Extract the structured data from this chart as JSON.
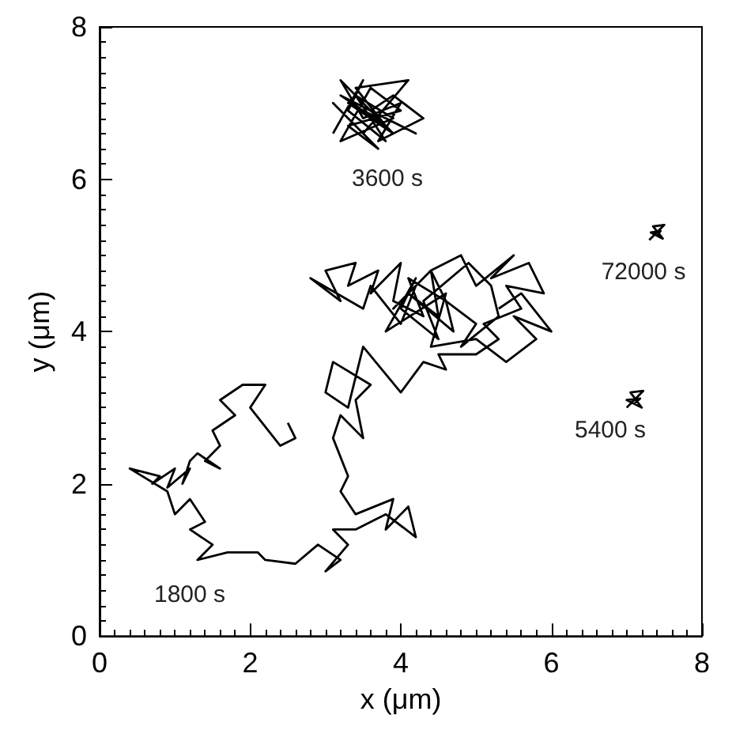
{
  "chart_data": {
    "type": "line",
    "xlabel": "x (μm)",
    "ylabel": "y (μm)",
    "xlim": [
      0,
      8
    ],
    "ylim": [
      0,
      8
    ],
    "xticks": [
      0,
      2,
      4,
      6,
      8
    ],
    "yticks": [
      0,
      2,
      4,
      6,
      8
    ],
    "grid": false,
    "marker": "none",
    "line_style": "solid",
    "series": [
      {
        "color": "#000000",
        "x": [
          2.5,
          2.6,
          2.4,
          2.0,
          2.2,
          1.9,
          1.6,
          1.8,
          1.5,
          1.6,
          1.4,
          1.6,
          1.3,
          1.2,
          1.1,
          1.2,
          0.9,
          1.0,
          0.7,
          0.8,
          0.4,
          0.9,
          1.0,
          1.2,
          1.4,
          1.2,
          1.5,
          1.3,
          1.7,
          2.1,
          2.2,
          2.6,
          2.9,
          3.2,
          3.0,
          3.3,
          3.1,
          3.4,
          3.8,
          4.2,
          4.1,
          3.8,
          3.9,
          3.4,
          3.2,
          3.3,
          3.1,
          3.2,
          3.5,
          3.4,
          3.6,
          3.1,
          3.0,
          3.3,
          3.5,
          4.0,
          4.3,
          4.6,
          4.5,
          5.0,
          5.3,
          5.1,
          5.6,
          5.4,
          5.9,
          5.7,
          5.2,
          5.5,
          5.0,
          4.8,
          4.4,
          4.6,
          4.1,
          4.3,
          3.9,
          4.0,
          3.6,
          3.7,
          3.3,
          3.4,
          3.0,
          3.2,
          2.8,
          3.5,
          3.6,
          4.0,
          4.2,
          3.9,
          4.4,
          4.5,
          4.1,
          4.7,
          4.6,
          5.0,
          4.8,
          5.3,
          5.2,
          4.9,
          4.3,
          4.5,
          4.0,
          4.2,
          3.8,
          4.6,
          4.4,
          5.0,
          5.4,
          5.8,
          5.5,
          6.0,
          5.6,
          5.3
        ],
        "values": [
          2.8,
          2.6,
          2.5,
          3.0,
          3.3,
          3.3,
          3.1,
          2.9,
          2.7,
          2.5,
          2.3,
          2.2,
          2.4,
          2.3,
          2.0,
          2.2,
          1.95,
          2.2,
          2.0,
          2.1,
          2.2,
          1.9,
          1.6,
          1.8,
          1.5,
          1.4,
          1.2,
          1.0,
          1.1,
          1.1,
          1.0,
          0.95,
          1.2,
          1.0,
          0.85,
          1.2,
          1.4,
          1.4,
          1.6,
          1.3,
          1.7,
          1.4,
          1.8,
          1.6,
          1.9,
          2.1,
          2.6,
          2.9,
          2.6,
          3.1,
          3.3,
          3.6,
          3.2,
          3.0,
          3.8,
          3.2,
          3.6,
          3.5,
          3.7,
          3.7,
          3.9,
          4.1,
          4.3,
          4.6,
          4.5,
          4.9,
          4.7,
          5.0,
          4.6,
          5.0,
          4.8,
          4.4,
          4.7,
          4.2,
          4.4,
          4.9,
          4.5,
          4.8,
          4.6,
          4.9,
          4.8,
          4.4,
          4.7,
          4.3,
          4.6,
          4.1,
          4.6,
          4.3,
          4.8,
          4.2,
          4.5,
          4.0,
          4.4,
          4.1,
          3.8,
          4.2,
          4.6,
          4.9,
          4.4,
          3.9,
          4.3,
          4.7,
          4.0,
          4.5,
          3.8,
          3.9,
          3.6,
          3.9,
          4.2,
          4.0,
          4.5,
          4.3
        ]
      },
      {
        "color": "#000000",
        "x": [
          3.1,
          3.5,
          3.3,
          3.8,
          3.4,
          3.9,
          3.2,
          3.6,
          4.0,
          3.3,
          3.7,
          3.1,
          3.5,
          4.1,
          3.4,
          3.8,
          3.2,
          4.2,
          3.6,
          3.9,
          4.3,
          3.7,
          4.0,
          3.5,
          3.2,
          3.9,
          3.3,
          3.7
        ],
        "values": [
          6.6,
          7.3,
          6.9,
          6.5,
          7.1,
          6.8,
          6.5,
          7.2,
          6.9,
          6.7,
          6.4,
          7.0,
          6.6,
          7.3,
          7.2,
          6.7,
          7.1,
          6.6,
          6.9,
          7.1,
          6.8,
          6.5,
          7.0,
          6.8,
          7.3,
          6.6,
          7.0,
          6.8
        ]
      },
      {
        "color": "#000000",
        "x": [
          7.3,
          7.5,
          7.35,
          7.48,
          7.32,
          7.45,
          7.4
        ],
        "values": [
          5.2,
          5.4,
          5.38,
          5.22,
          5.3,
          5.32,
          5.25
        ]
      },
      {
        "color": "#000000",
        "x": [
          7.0,
          7.22,
          7.05,
          7.2,
          7.0,
          7.18,
          7.1
        ],
        "values": [
          3.0,
          3.22,
          3.2,
          3.0,
          3.1,
          3.12,
          3.05
        ]
      }
    ],
    "annotations": [
      "3600 s",
      "72000 s",
      "5400 s",
      "1800 s"
    ]
  }
}
